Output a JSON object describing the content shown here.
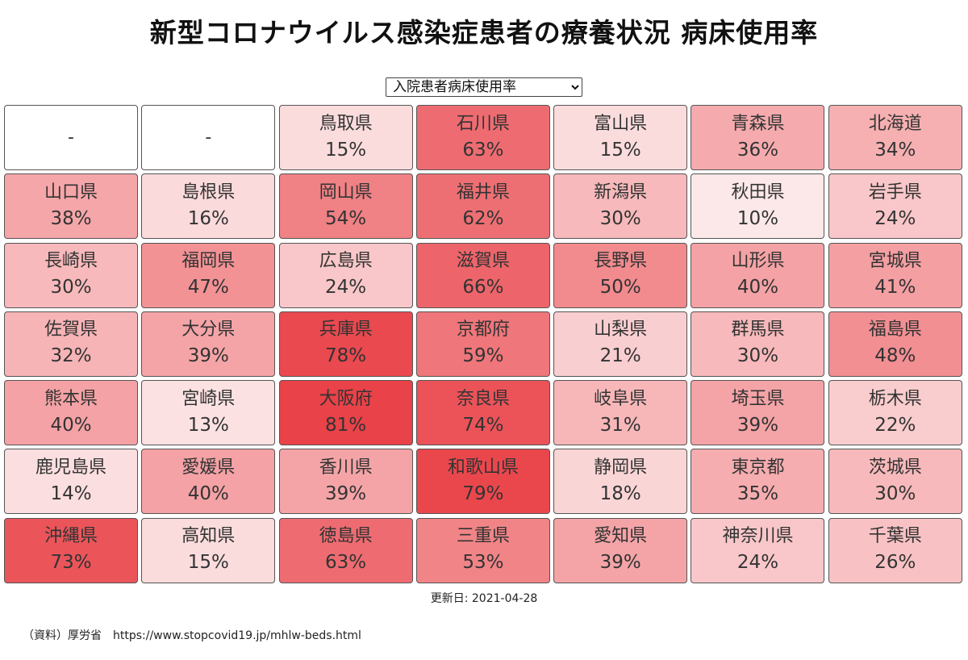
{
  "title": "新型コロナウイルス感染症患者の療養状況 病床使用率",
  "selector": {
    "selected": "入院患者病床使用率",
    "options": [
      "入院患者病床使用率"
    ]
  },
  "color_scale": {
    "low": "#ffffff",
    "high": "#e8393f"
  },
  "grid": [
    {
      "name": "-",
      "pct": "",
      "rate": null
    },
    {
      "name": "-",
      "pct": "",
      "rate": null
    },
    {
      "name": "鳥取県",
      "pct": "15%",
      "rate": 15
    },
    {
      "name": "石川県",
      "pct": "63%",
      "rate": 63
    },
    {
      "name": "富山県",
      "pct": "15%",
      "rate": 15
    },
    {
      "name": "青森県",
      "pct": "36%",
      "rate": 36
    },
    {
      "name": "北海道",
      "pct": "34%",
      "rate": 34
    },
    {
      "name": "山口県",
      "pct": "38%",
      "rate": 38
    },
    {
      "name": "島根県",
      "pct": "16%",
      "rate": 16
    },
    {
      "name": "岡山県",
      "pct": "54%",
      "rate": 54
    },
    {
      "name": "福井県",
      "pct": "62%",
      "rate": 62
    },
    {
      "name": "新潟県",
      "pct": "30%",
      "rate": 30
    },
    {
      "name": "秋田県",
      "pct": "10%",
      "rate": 10
    },
    {
      "name": "岩手県",
      "pct": "24%",
      "rate": 24
    },
    {
      "name": "長崎県",
      "pct": "30%",
      "rate": 30
    },
    {
      "name": "福岡県",
      "pct": "47%",
      "rate": 47
    },
    {
      "name": "広島県",
      "pct": "24%",
      "rate": 24
    },
    {
      "name": "滋賀県",
      "pct": "66%",
      "rate": 66
    },
    {
      "name": "長野県",
      "pct": "50%",
      "rate": 50
    },
    {
      "name": "山形県",
      "pct": "40%",
      "rate": 40
    },
    {
      "name": "宮城県",
      "pct": "41%",
      "rate": 41
    },
    {
      "name": "佐賀県",
      "pct": "32%",
      "rate": 32
    },
    {
      "name": "大分県",
      "pct": "39%",
      "rate": 39
    },
    {
      "name": "兵庫県",
      "pct": "78%",
      "rate": 78
    },
    {
      "name": "京都府",
      "pct": "59%",
      "rate": 59
    },
    {
      "name": "山梨県",
      "pct": "21%",
      "rate": 21
    },
    {
      "name": "群馬県",
      "pct": "30%",
      "rate": 30
    },
    {
      "name": "福島県",
      "pct": "48%",
      "rate": 48
    },
    {
      "name": "熊本県",
      "pct": "40%",
      "rate": 40
    },
    {
      "name": "宮崎県",
      "pct": "13%",
      "rate": 13
    },
    {
      "name": "大阪府",
      "pct": "81%",
      "rate": 81
    },
    {
      "name": "奈良県",
      "pct": "74%",
      "rate": 74
    },
    {
      "name": "岐阜県",
      "pct": "31%",
      "rate": 31
    },
    {
      "name": "埼玉県",
      "pct": "39%",
      "rate": 39
    },
    {
      "name": "栃木県",
      "pct": "22%",
      "rate": 22
    },
    {
      "name": "鹿児島県",
      "pct": "14%",
      "rate": 14
    },
    {
      "name": "愛媛県",
      "pct": "40%",
      "rate": 40
    },
    {
      "name": "香川県",
      "pct": "39%",
      "rate": 39
    },
    {
      "name": "和歌山県",
      "pct": "79%",
      "rate": 79
    },
    {
      "name": "静岡県",
      "pct": "18%",
      "rate": 18
    },
    {
      "name": "東京都",
      "pct": "35%",
      "rate": 35
    },
    {
      "name": "茨城県",
      "pct": "30%",
      "rate": 30
    },
    {
      "name": "沖縄県",
      "pct": "73%",
      "rate": 73
    },
    {
      "name": "高知県",
      "pct": "15%",
      "rate": 15
    },
    {
      "name": "徳島県",
      "pct": "63%",
      "rate": 63
    },
    {
      "name": "三重県",
      "pct": "53%",
      "rate": 53
    },
    {
      "name": "愛知県",
      "pct": "39%",
      "rate": 39
    },
    {
      "name": "神奈川県",
      "pct": "24%",
      "rate": 24
    },
    {
      "name": "千葉県",
      "pct": "26%",
      "rate": 26
    }
  ],
  "updated": "更新日: 2021-04-28",
  "source": "（資料）厚労省　https://www.stopcovid19.jp/mhlw-beds.html"
}
